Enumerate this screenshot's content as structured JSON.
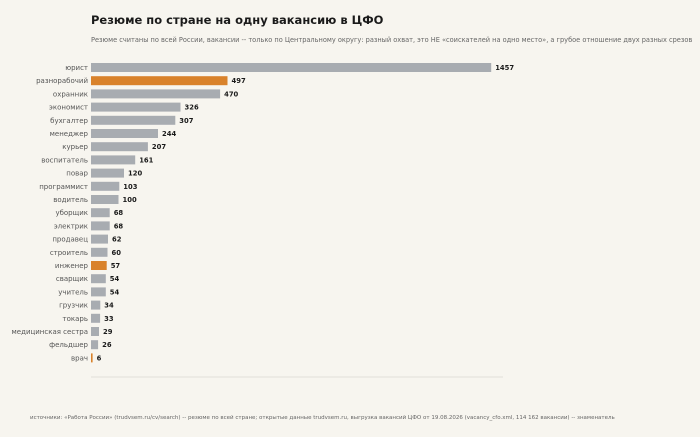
{
  "title": "Резюме по стране на одну вакансию в ЦФО",
  "subtitle": "Резюме считаны по всей России, вакансии -- только по Центральному округу: разный охват, это НЕ «соискателей на одно место», а грубое отношение двух разных срезов",
  "source": "источники: «Работа России» (trudvsem.ru/cv/search) -- резюме по всей стране; открытые данные trudvsem.ru, выгрузка вакансий ЦФО от 19.08.2026 (vacancy_cfo.xml, 114 162 вакансии) -- знаменатель",
  "colors": {
    "default": "#a8acb1",
    "highlight": "#d9822b",
    "background": "#f7f5ef"
  },
  "chart_data": {
    "type": "bar",
    "orientation": "horizontal",
    "title": "Резюме по стране на одну вакансию в ЦФО",
    "xlabel": "",
    "ylabel": "",
    "xlim": [
      0,
      1500
    ],
    "grid": false,
    "legend": "none",
    "categories": [
      "юрист",
      "разнорабочий",
      "охранник",
      "экономист",
      "бухгалтер",
      "менеджер",
      "курьер",
      "воспитатель",
      "повар",
      "программист",
      "водитель",
      "уборщик",
      "электрик",
      "продавец",
      "строитель",
      "инженер",
      "сварщик",
      "учитель",
      "грузчик",
      "токарь",
      "медицинская сестра",
      "фельдшер",
      "врач"
    ],
    "values": [
      1457,
      497,
      470,
      326,
      307,
      244,
      207,
      161,
      120,
      103,
      100,
      68,
      68,
      62,
      60,
      57,
      54,
      54,
      34,
      33,
      29,
      26,
      6
    ],
    "highlighted": [
      "разнорабочий",
      "инженер",
      "врач"
    ]
  }
}
